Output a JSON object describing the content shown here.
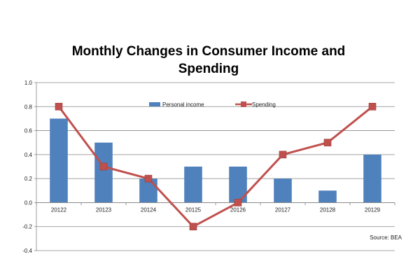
{
  "chart_data": {
    "type": "bar",
    "title_lines": [
      "Monthly Changes in Consumer Income and",
      "Spending"
    ],
    "categories": [
      "20122",
      "20123",
      "20124",
      "20125",
      "20126",
      "20127",
      "20128",
      "20129"
    ],
    "series": [
      {
        "name": "Personal income",
        "type": "bar",
        "color": "#4F81BD",
        "values": [
          0.7,
          0.5,
          0.2,
          0.3,
          0.3,
          0.2,
          0.1,
          0.4
        ]
      },
      {
        "name": "Spending",
        "type": "line",
        "color": "#C0504D",
        "values": [
          0.8,
          0.3,
          0.2,
          -0.2,
          0.0,
          0.4,
          0.5,
          0.8
        ]
      }
    ],
    "ylim": [
      -0.4,
      1.0
    ],
    "yticks": [
      -0.4,
      -0.2,
      0.0,
      0.2,
      0.4,
      0.6,
      0.8,
      1.0
    ],
    "ytick_labels": [
      "-0.4",
      "-0.2",
      "0.0",
      "0.2",
      "0.4",
      "0.6",
      "0.8",
      "1.0"
    ],
    "grid": true,
    "legend_position": "top-center",
    "xlabel": "",
    "ylabel": "",
    "annotation": "Source: BEA"
  }
}
